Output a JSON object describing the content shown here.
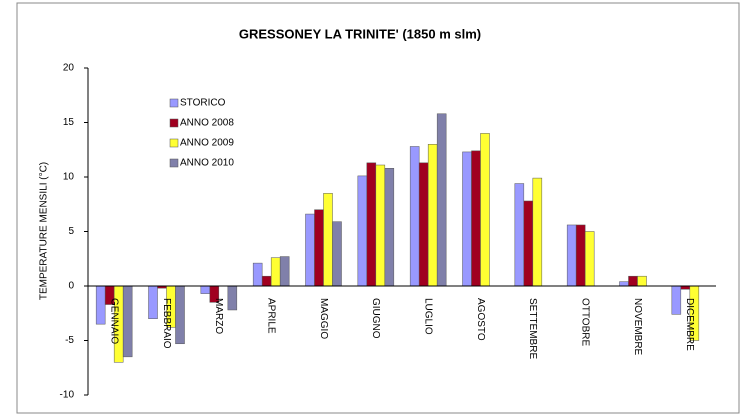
{
  "chart_data": {
    "type": "bar",
    "title": "GRESSONEY LA TRINITE' (1850 m slm)",
    "y_label": "TEMPERATURE MENSILI (°C)",
    "categories": [
      "GENNAIO",
      "FEBBRAIO",
      "MARZO",
      "APRILE",
      "MAGGIO",
      "GIUGNO",
      "LUGLIO",
      "AGOSTO",
      "SETTEMBRE",
      "OTTOBRE",
      "NOVEMBRE",
      "DICEMBRE"
    ],
    "series": [
      {
        "name": "STORICO",
        "color": "#9999ff",
        "values": [
          -3.5,
          -3,
          -0.7,
          2.1,
          6.6,
          10.1,
          12.8,
          12.3,
          9.4,
          5.6,
          0.4,
          -2.6
        ]
      },
      {
        "name": "ANNO 2008",
        "color": "#a00020",
        "values": [
          -1.7,
          -0.2,
          -1.5,
          0.9,
          7.0,
          11.3,
          11.3,
          12.4,
          7.8,
          5.6,
          0.9,
          -0.3
        ]
      },
      {
        "name": "ANNO 2009",
        "color": "#ffff33",
        "values": [
          -7,
          -3.8,
          0,
          2.6,
          8.5,
          11.1,
          13.0,
          14.0,
          9.9,
          5.0,
          0.9,
          -5.0
        ]
      },
      {
        "name": "ANNO 2010",
        "color": "#8080aa",
        "values": [
          -6.5,
          -5.3,
          -2.2,
          2.7,
          5.9,
          10.8,
          15.8,
          null,
          null,
          null,
          null,
          null
        ]
      }
    ],
    "ylim": [
      -10,
      20
    ],
    "yticks": [
      -10,
      -5,
      0,
      5,
      10,
      15,
      20
    ],
    "legend": "upper left"
  }
}
